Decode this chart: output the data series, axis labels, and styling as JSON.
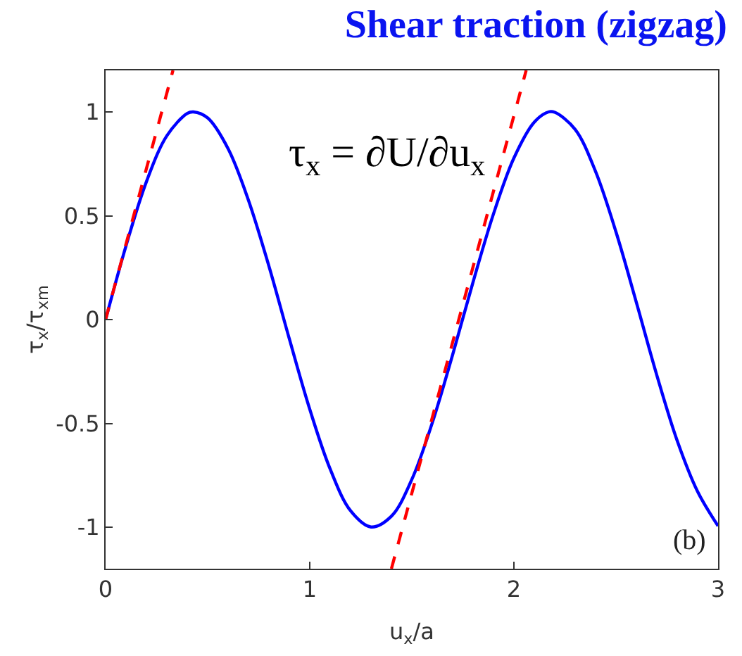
{
  "chart_data": {
    "type": "line",
    "title": "Shear traction (zigzag)",
    "xlabel": "u$_{x}$/a",
    "ylabel": "τ$_{x}$/τ$_{xm}$",
    "annotations": [
      "τ$_{x}$ = ∂U/∂u$_{x}$",
      "(b)"
    ],
    "xlim": [
      0,
      3
    ],
    "ylim": [
      -1.2,
      1.2
    ],
    "xticks": [
      0,
      1,
      2,
      3
    ],
    "yticks": [
      -1,
      -0.5,
      0,
      0.5,
      1
    ],
    "series": [
      {
        "color": "#0000ff",
        "line_style": "solid",
        "x": [
          0,
          0.1,
          0.2,
          0.3,
          0.4,
          0.43,
          0.5,
          0.6,
          0.7,
          0.8,
          0.9,
          1.0,
          1.1,
          1.2,
          1.3,
          1.4,
          1.5,
          1.6,
          1.7,
          1.8,
          1.9,
          2.0,
          2.1,
          2.17,
          2.2,
          2.3,
          2.4,
          2.5,
          2.6,
          2.7,
          2.8,
          2.9,
          3.0
        ],
        "values": [
          0,
          0.355,
          0.664,
          0.885,
          0.993,
          1.0,
          0.971,
          0.823,
          0.574,
          0.257,
          -0.093,
          -0.432,
          -0.72,
          -0.921,
          -0.999,
          -0.947,
          -0.77,
          -0.498,
          -0.169,
          0.181,
          0.509,
          0.778,
          0.951,
          1.0,
          0.998,
          0.916,
          0.713,
          0.422,
          0.082,
          -0.268,
          -0.584,
          -0.829,
          -0.994
        ]
      },
      {
        "color": "#ff0000",
        "line_style": "dashed",
        "x": [
          0,
          0.33
        ],
        "values": [
          0,
          1.2
        ]
      },
      {
        "color": "#ff0000",
        "line_style": "dashed",
        "x": [
          1.4,
          2.06
        ],
        "values": [
          -1.2,
          1.2
        ]
      }
    ]
  }
}
